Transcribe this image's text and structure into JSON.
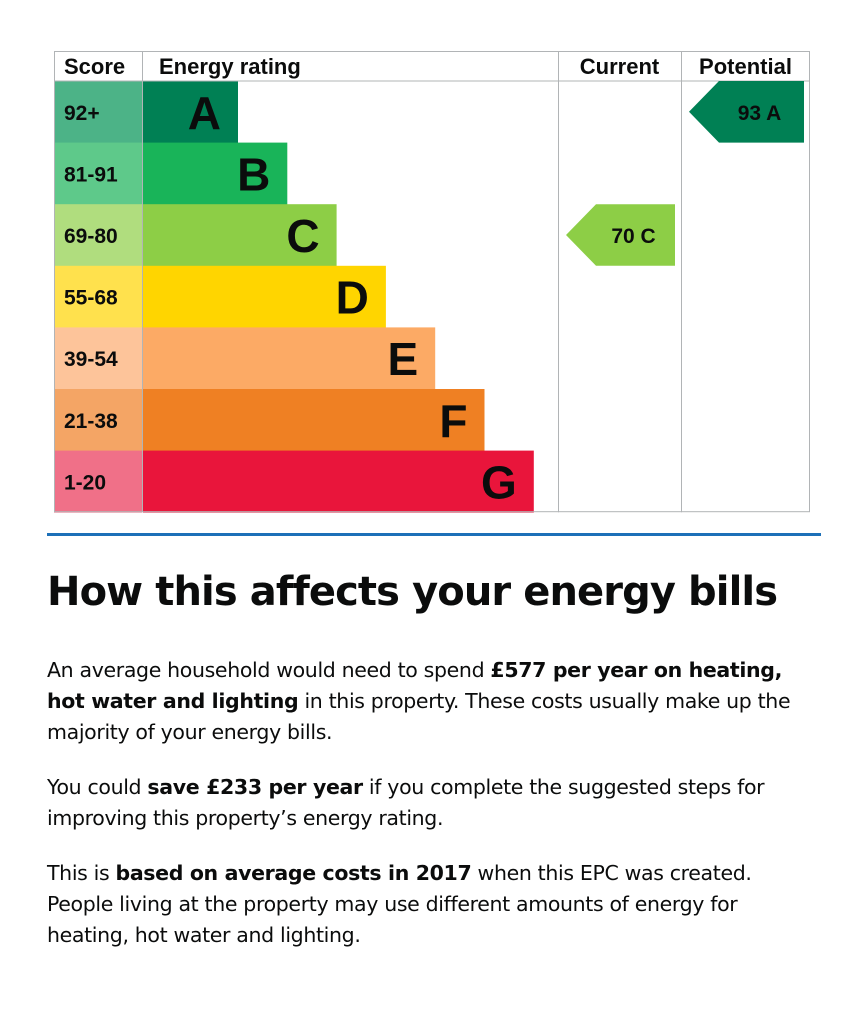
{
  "chart_data": {
    "type": "table",
    "headers": {
      "score": "Score",
      "rating": "Energy rating",
      "current": "Current",
      "potential": "Potential"
    },
    "bands": [
      {
        "range": "92+",
        "letter": "A",
        "color": "#008054",
        "score_color": "#4cb387"
      },
      {
        "range": "81-91",
        "letter": "B",
        "color": "#19b459",
        "score_color": "#5ec98a"
      },
      {
        "range": "69-80",
        "letter": "C",
        "color": "#8dce46",
        "score_color": "#b0dd7e"
      },
      {
        "range": "55-68",
        "letter": "D",
        "color": "#ffd500",
        "score_color": "#ffe14d"
      },
      {
        "range": "39-54",
        "letter": "E",
        "color": "#fcaa65",
        "score_color": "#fdc49a"
      },
      {
        "range": "21-38",
        "letter": "F",
        "color": "#ef8023",
        "score_color": "#f4a565"
      },
      {
        "range": "1-20",
        "letter": "G",
        "color": "#e9153b",
        "score_color": "#f07088"
      }
    ],
    "current": {
      "score": 70,
      "letter": "C",
      "label": "70  C"
    },
    "potential": {
      "score": 93,
      "letter": "A",
      "label": "93  A"
    }
  },
  "section": {
    "heading": "How this affects your energy bills",
    "p1": [
      {
        "text": "An average household would need to spend ",
        "bold": false
      },
      {
        "text": "£577 per year on heating, hot water and lighting",
        "bold": true
      },
      {
        "text": " in this property. These costs usually make up the majority of your energy bills.",
        "bold": false
      }
    ],
    "p2": [
      {
        "text": "You could ",
        "bold": false
      },
      {
        "text": "save £233 per year",
        "bold": true
      },
      {
        "text": " if you complete the suggested steps for improving this property’s energy rating.",
        "bold": false
      }
    ],
    "p3": [
      {
        "text": "This is ",
        "bold": false
      },
      {
        "text": "based on average costs in 2017",
        "bold": true
      },
      {
        "text": " when this EPC was created. People living at the property may use different amounts of energy for heating, hot water and lighting.",
        "bold": false
      }
    ]
  }
}
